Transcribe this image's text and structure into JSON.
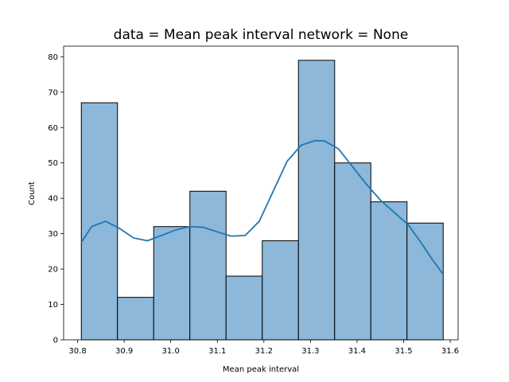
{
  "chart_data": {
    "type": "bar",
    "title": "data = Mean peak interval network = None",
    "xlabel": "Mean peak interval",
    "ylabel": "Count",
    "xlim": [
      30.77,
      31.617
    ],
    "ylim": [
      0,
      83
    ],
    "xticks": [
      "30.8",
      "30.9",
      "31.0",
      "31.1",
      "31.2",
      "31.3",
      "31.4",
      "31.5",
      "31.6"
    ],
    "yticks": [
      "0",
      "10",
      "20",
      "30",
      "40",
      "50",
      "60",
      "70",
      "80"
    ],
    "bins": [
      {
        "x0": 30.808,
        "x1": 30.8857,
        "count": 67
      },
      {
        "x0": 30.8857,
        "x1": 30.9634,
        "count": 12
      },
      {
        "x0": 30.9634,
        "x1": 31.0411,
        "count": 32
      },
      {
        "x0": 31.0411,
        "x1": 31.1188,
        "count": 42
      },
      {
        "x0": 31.1188,
        "x1": 31.1965,
        "count": 18
      },
      {
        "x0": 31.1965,
        "x1": 31.2742,
        "count": 28
      },
      {
        "x0": 31.2742,
        "x1": 31.3519,
        "count": 79
      },
      {
        "x0": 31.3519,
        "x1": 31.4296,
        "count": 50
      },
      {
        "x0": 31.4296,
        "x1": 31.5073,
        "count": 39
      },
      {
        "x0": 31.5073,
        "x1": 31.585,
        "count": 33
      }
    ],
    "kde": {
      "x": [
        30.808,
        30.83,
        30.86,
        30.89,
        30.92,
        30.95,
        30.98,
        31.01,
        31.04,
        31.07,
        31.1,
        31.13,
        31.16,
        31.19,
        31.22,
        31.25,
        31.28,
        31.31,
        31.33,
        31.36,
        31.39,
        31.42,
        31.45,
        31.48,
        31.51,
        31.54,
        31.56,
        31.585
      ],
      "y": [
        27.5,
        32.0,
        33.5,
        31.5,
        28.8,
        28.0,
        29.5,
        31.0,
        32.0,
        31.8,
        30.5,
        29.3,
        29.5,
        33.5,
        42.0,
        50.5,
        55.0,
        56.3,
        56.2,
        54.0,
        49.0,
        44.0,
        39.5,
        36.0,
        32.5,
        27.0,
        23.0,
        18.5
      ]
    },
    "colors": {
      "bar_fill": "#8db8da",
      "bar_edge": "#000000",
      "line": "#1f77b4"
    },
    "grid": false,
    "legend": "none"
  }
}
